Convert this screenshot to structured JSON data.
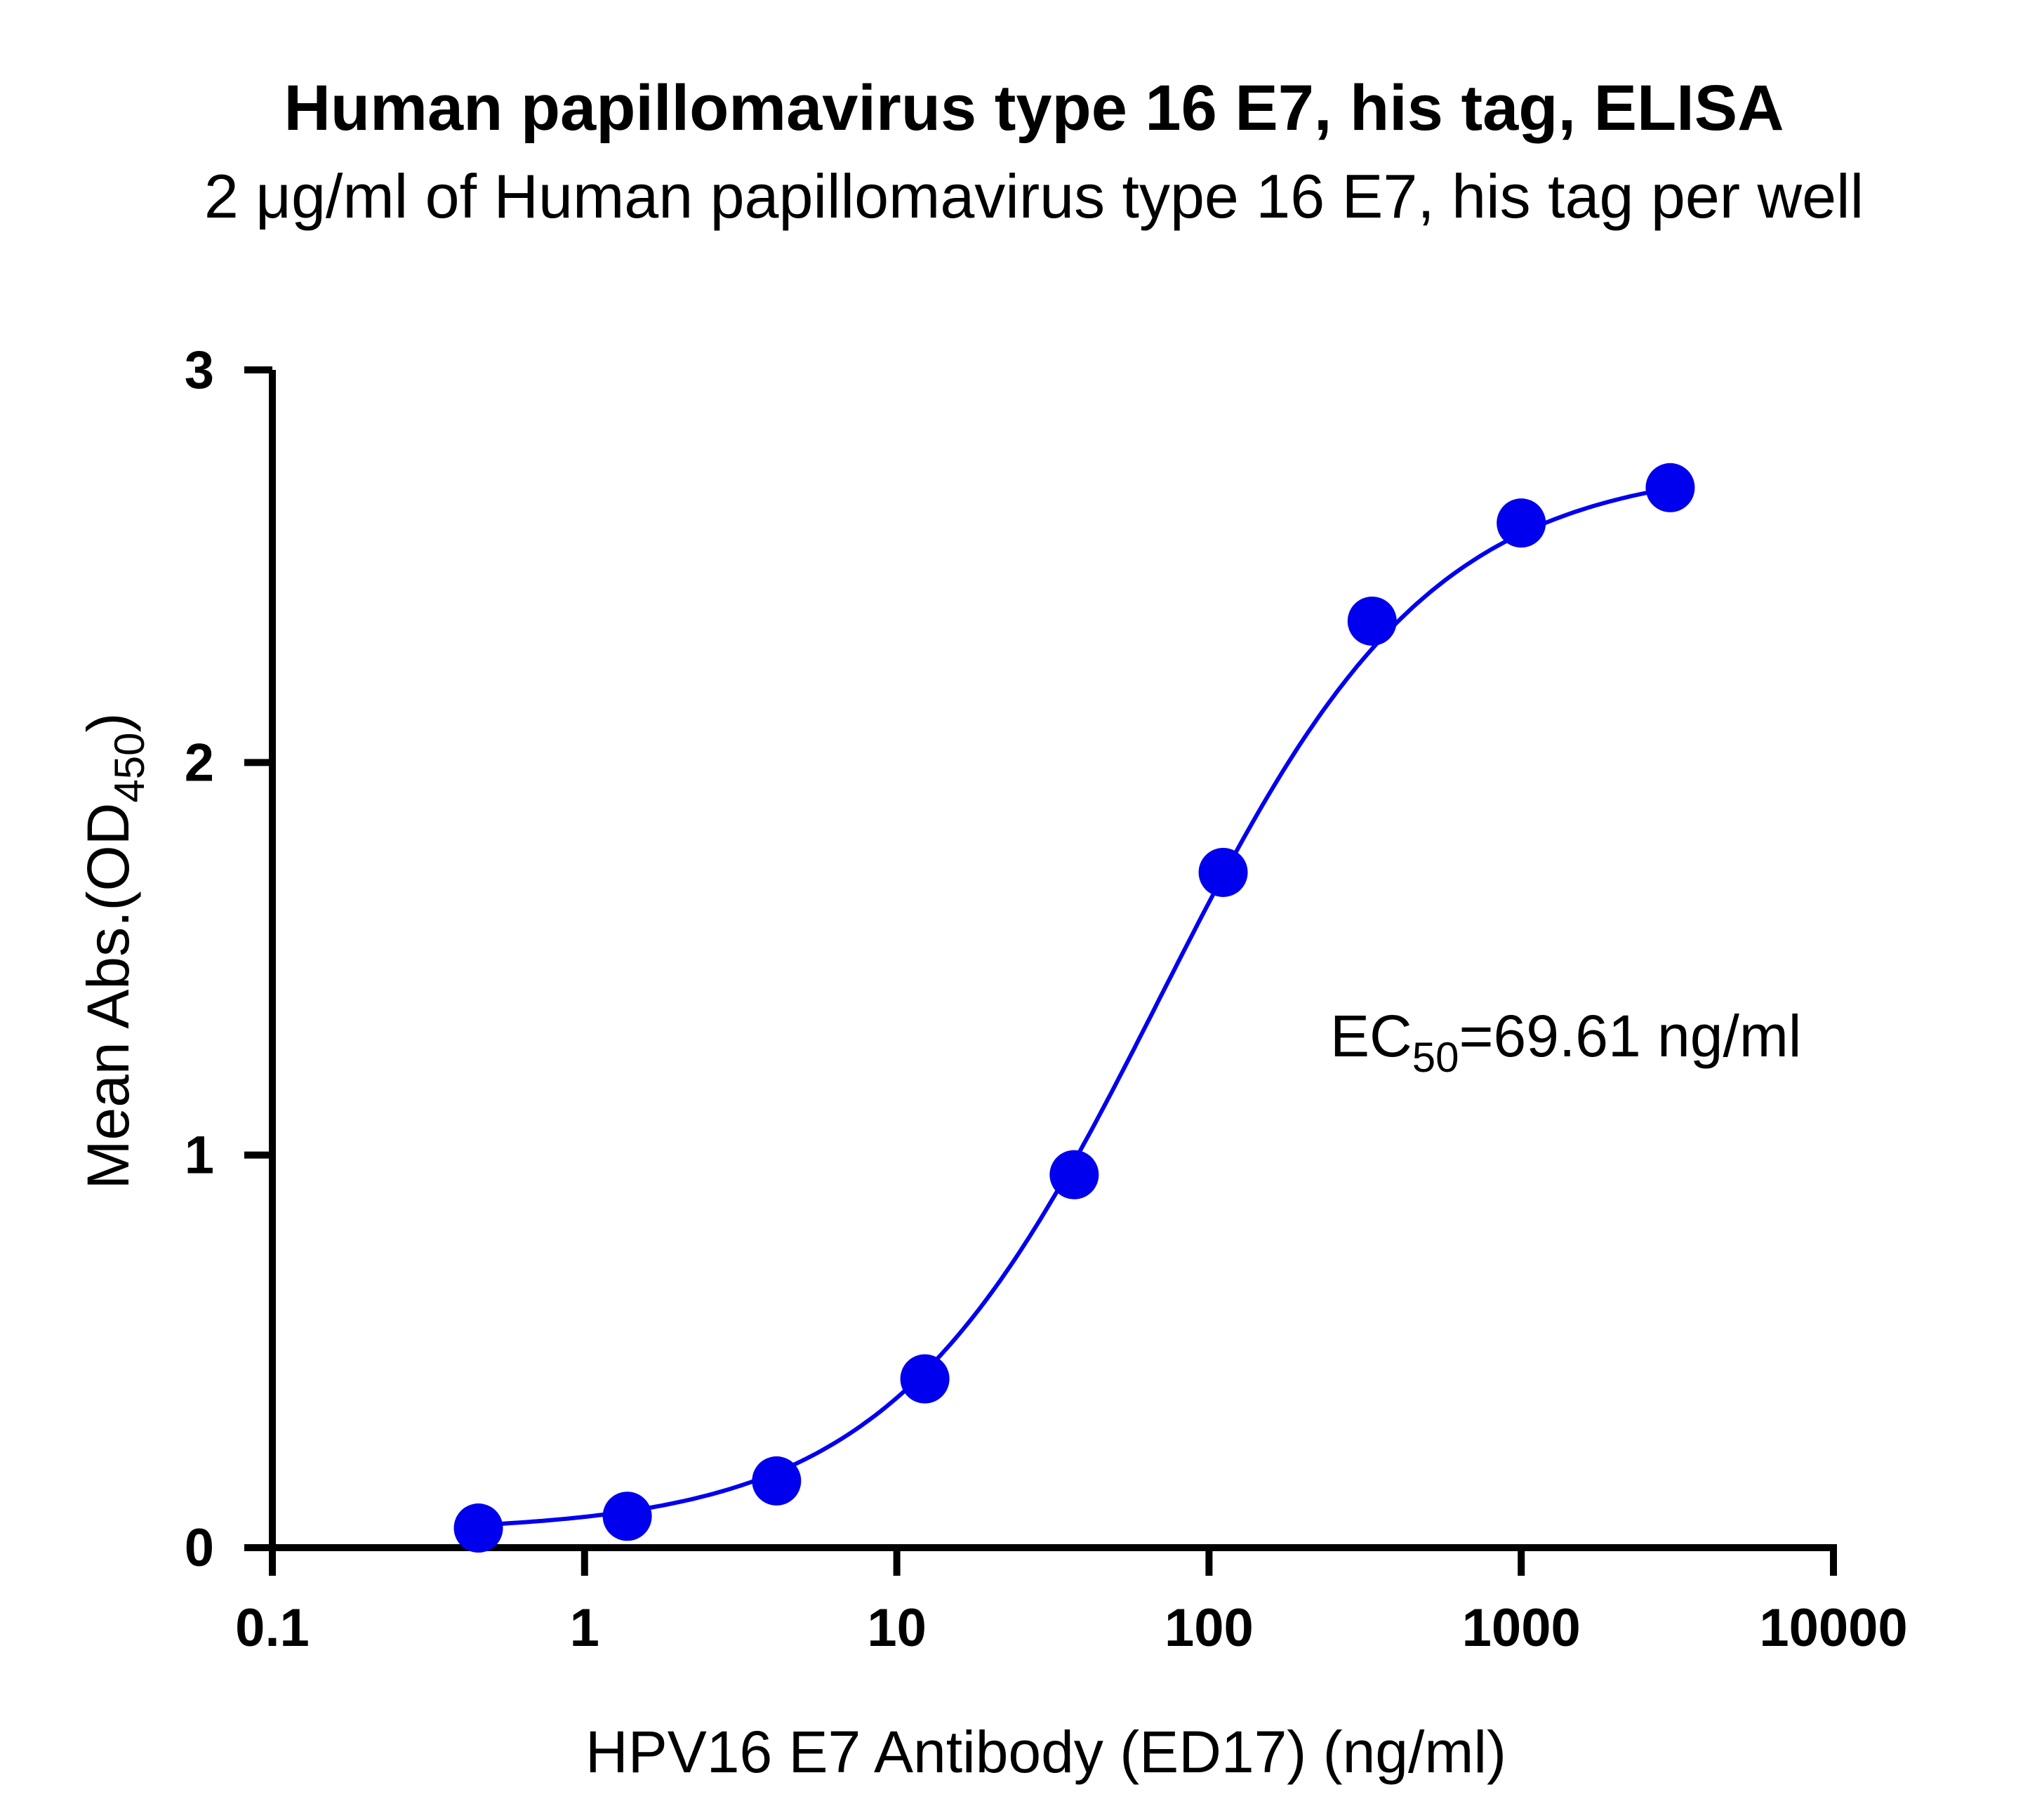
{
  "chart_data": {
    "type": "scatter",
    "title": "Human papillomavirus type 16 E7, his tag, ELISA",
    "subtitle": "2 μg/ml of Human papillomavirus type 16 E7, his tag per well",
    "xlabel": "HPV16 E7 Antibody (ED17) (ng/ml)",
    "ylabel": {
      "main": "Mean Abs.(OD",
      "sub": "450",
      "close": ")"
    },
    "x_scale": "log",
    "xlim": [
      0.1,
      10000
    ],
    "ylim": [
      0,
      3
    ],
    "x_ticks": [
      "0.1",
      "1",
      "10",
      "100",
      "1000",
      "10000"
    ],
    "y_ticks": [
      "0",
      "1",
      "2",
      "3"
    ],
    "grid": false,
    "series": [
      {
        "color": "#0000ee",
        "x": [
          0.457,
          1.37,
          4.12,
          12.3,
          37.0,
          111,
          333,
          1000,
          3000
        ],
        "y": [
          0.05,
          0.08,
          0.17,
          0.43,
          0.95,
          1.72,
          2.36,
          2.61,
          2.7
        ]
      }
    ],
    "fit": {
      "type": "4PL",
      "bottom": 0.04,
      "top": 2.76,
      "ec50": 69.61,
      "hill": 1.0
    },
    "annotation": {
      "pre": "EC",
      "sub": "50",
      "post": "=69.61 ng/ml"
    }
  }
}
